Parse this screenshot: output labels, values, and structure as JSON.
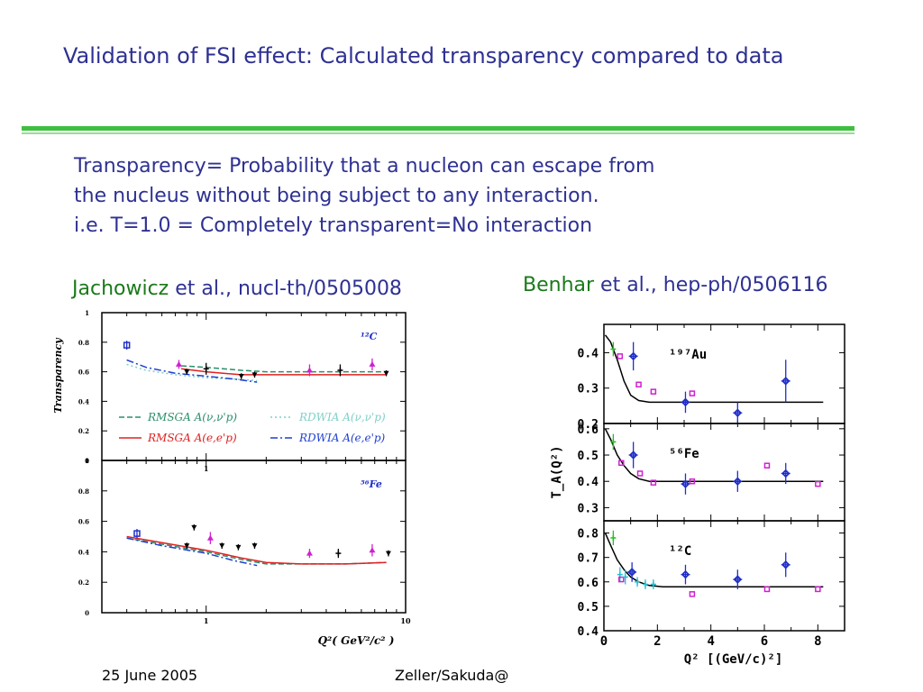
{
  "slide": {
    "title": "Validation of FSI effect: Calculated transparency compared to data",
    "definition": [
      "Transparency= Probability that a nucleon can escape from",
      "the nucleus without being subject to any interaction.",
      "i.e. T=1.0 = Completely transparent=No interaction"
    ],
    "ref_left": {
      "author": "Jachowicz",
      "rest": " et al., nucl-th/0505008"
    },
    "ref_right": {
      "author": "Benhar",
      "rest": " et al., hep-ph/0506116"
    },
    "footer_date": "25 June 2005",
    "footer_author": "Zeller/Sakuda@"
  },
  "colors": {
    "title": "#2e3192",
    "author": "#1a7a1a",
    "rule": "#3fbf3f",
    "rmsga_nu": "#2a8f6a",
    "rmsga_e": "#e02020",
    "rdwia_nu": "#7fd0c8",
    "rdwia_e": "#1f3fd0",
    "blue_pts": "#1f2fc8",
    "magenta_pts": "#d020d0",
    "green_pts": "#20c020",
    "cyan_pts": "#20c0d0"
  },
  "chart_data": [
    {
      "type": "line",
      "title": "",
      "panel_label": "¹²C",
      "xlabel": "",
      "ylabel": "Transparency",
      "xscale": "log",
      "xlim": [
        0.3,
        10
      ],
      "ylim": [
        0,
        1
      ],
      "xticks": [
        {
          "value": 1,
          "label": "1"
        }
      ],
      "yticks": [
        {
          "value": 0,
          "label": "0"
        },
        {
          "value": 0.2,
          "label": "0.2"
        },
        {
          "value": 0.4,
          "label": "0.4"
        },
        {
          "value": 0.6,
          "label": "0.6"
        },
        {
          "value": 0.8,
          "label": "0.8"
        },
        {
          "value": 1,
          "label": "1"
        }
      ],
      "legend": [
        {
          "label": "RMSGA A(ν,ν'p)",
          "series": 0
        },
        {
          "label": "RDWIA A(ν,ν'p)",
          "series": 2
        },
        {
          "label": "RMSGA A(e,e'p)",
          "series": 1
        },
        {
          "label": "RDWIA A(e,e'p)",
          "series": 3
        }
      ],
      "series": [
        {
          "name": "RMSGA A(ν,ν'p)",
          "style": "dashed",
          "color": "#2a8f6a",
          "x": [
            0.75,
            1.0,
            1.5,
            2.0,
            3.0,
            5.0,
            8.0
          ],
          "y": [
            0.64,
            0.63,
            0.61,
            0.6,
            0.6,
            0.6,
            0.6
          ]
        },
        {
          "name": "RMSGA A(e,e'p)",
          "style": "solid",
          "color": "#e02020",
          "x": [
            0.75,
            1.0,
            1.5,
            2.0,
            3.0,
            5.0,
            8.0
          ],
          "y": [
            0.62,
            0.6,
            0.58,
            0.58,
            0.58,
            0.58,
            0.58
          ]
        },
        {
          "name": "RDWIA A(ν,ν'p)",
          "style": "dotted",
          "color": "#7fd0c8",
          "x": [
            0.4,
            0.5,
            0.7,
            1.0,
            1.4,
            1.8
          ],
          "y": [
            0.65,
            0.61,
            0.58,
            0.56,
            0.55,
            0.54
          ]
        },
        {
          "name": "RDWIA A(e,e'p)",
          "style": "dashdot",
          "color": "#1f3fd0",
          "x": [
            0.4,
            0.5,
            0.7,
            1.0,
            1.4,
            1.8
          ],
          "y": [
            0.68,
            0.63,
            0.59,
            0.57,
            0.55,
            0.53
          ]
        }
      ],
      "points": [
        {
          "x": 0.4,
          "y": 0.78,
          "err": 0.03,
          "marker": "square",
          "color": "#1f2fc8"
        },
        {
          "x": 0.73,
          "y": 0.65,
          "err": 0.03,
          "marker": "triangle-up",
          "color": "#d020d0"
        },
        {
          "x": 0.8,
          "y": 0.6,
          "err": 0.02,
          "marker": "triangle-down",
          "color": "#000000"
        },
        {
          "x": 1.0,
          "y": 0.62,
          "err": 0.04,
          "marker": "cross",
          "color": "#000000"
        },
        {
          "x": 1.5,
          "y": 0.57,
          "err": 0.02,
          "marker": "triangle-down",
          "color": "#000000"
        },
        {
          "x": 1.75,
          "y": 0.58,
          "err": 0.02,
          "marker": "triangle-down",
          "color": "#000000"
        },
        {
          "x": 3.3,
          "y": 0.61,
          "err": 0.04,
          "marker": "triangle-up",
          "color": "#d020d0"
        },
        {
          "x": 4.7,
          "y": 0.61,
          "err": 0.04,
          "marker": "cross",
          "color": "#000000"
        },
        {
          "x": 6.8,
          "y": 0.65,
          "err": 0.04,
          "marker": "triangle-up",
          "color": "#d020d0"
        },
        {
          "x": 8.0,
          "y": 0.59,
          "err": 0.02,
          "marker": "triangle-down",
          "color": "#000000"
        }
      ]
    },
    {
      "type": "line",
      "title": "",
      "panel_label": "⁵⁶Fe",
      "xlabel": "Q²( GeV²/c² )",
      "ylabel": "",
      "xscale": "log",
      "xlim": [
        0.3,
        10
      ],
      "ylim": [
        0,
        1
      ],
      "xticks": [
        {
          "value": 1,
          "label": "1"
        },
        {
          "value": 10,
          "label": "10"
        }
      ],
      "yticks": [
        {
          "value": 0,
          "label": "0"
        },
        {
          "value": 0.2,
          "label": "0.2"
        },
        {
          "value": 0.4,
          "label": "0.4"
        },
        {
          "value": 0.6,
          "label": "0.6"
        },
        {
          "value": 0.8,
          "label": "0.8"
        },
        {
          "value": 1,
          "label": "1"
        }
      ],
      "series": [
        {
          "name": "RMSGA A(ν,ν'p)",
          "style": "dashed",
          "color": "#2a8f6a",
          "x": [
            0.4,
            0.6,
            1.0,
            1.5,
            2.0,
            3.0,
            5.0,
            8.0
          ],
          "y": [
            0.49,
            0.45,
            0.4,
            0.35,
            0.32,
            0.32,
            0.32,
            0.33
          ]
        },
        {
          "name": "RMSGA A(e,e'p)",
          "style": "solid",
          "color": "#e02020",
          "x": [
            0.4,
            0.6,
            1.0,
            1.5,
            2.0,
            3.0,
            5.0,
            8.0
          ],
          "y": [
            0.5,
            0.46,
            0.41,
            0.36,
            0.33,
            0.32,
            0.32,
            0.33
          ]
        },
        {
          "name": "RDWIA A(e,e'p)",
          "style": "dashdot",
          "color": "#1f3fd0",
          "x": [
            0.4,
            0.6,
            1.0,
            1.4,
            1.8
          ],
          "y": [
            0.49,
            0.44,
            0.39,
            0.34,
            0.31
          ]
        }
      ],
      "points": [
        {
          "x": 0.45,
          "y": 0.52,
          "err": 0.03,
          "marker": "square",
          "color": "#1f2fc8"
        },
        {
          "x": 0.8,
          "y": 0.44,
          "err": 0.02,
          "marker": "triangle-down",
          "color": "#000000"
        },
        {
          "x": 0.87,
          "y": 0.56,
          "err": 0.02,
          "marker": "triangle-down",
          "color": "#000000"
        },
        {
          "x": 1.05,
          "y": 0.49,
          "err": 0.04,
          "marker": "triangle-up",
          "color": "#d020d0"
        },
        {
          "x": 1.2,
          "y": 0.44,
          "err": 0.02,
          "marker": "triangle-down",
          "color": "#000000"
        },
        {
          "x": 1.45,
          "y": 0.43,
          "err": 0.02,
          "marker": "triangle-down",
          "color": "#000000"
        },
        {
          "x": 1.75,
          "y": 0.44,
          "err": 0.02,
          "marker": "triangle-down",
          "color": "#000000"
        },
        {
          "x": 3.3,
          "y": 0.39,
          "err": 0.03,
          "marker": "triangle-up",
          "color": "#d020d0"
        },
        {
          "x": 4.6,
          "y": 0.39,
          "err": 0.03,
          "marker": "cross",
          "color": "#000000"
        },
        {
          "x": 6.8,
          "y": 0.41,
          "err": 0.04,
          "marker": "triangle-up",
          "color": "#d020d0"
        },
        {
          "x": 8.2,
          "y": 0.39,
          "err": 0.02,
          "marker": "triangle-down",
          "color": "#000000"
        }
      ]
    },
    {
      "type": "line",
      "title": "",
      "panel_label": "¹⁹⁷Au",
      "xlabel": "",
      "ylabel": "",
      "xlim": [
        0,
        9
      ],
      "ylim": [
        0.2,
        0.48
      ],
      "xticks": [],
      "yticks": [
        {
          "value": 0.2,
          "label": "0.2"
        },
        {
          "value": 0.3,
          "label": "0.3"
        },
        {
          "value": 0.4,
          "label": "0.4"
        }
      ],
      "series": [
        {
          "name": "",
          "style": "solid",
          "color": "#000000",
          "x": [
            0.05,
            0.25,
            0.5,
            0.75,
            1.0,
            1.3,
            1.7,
            2.2,
            3,
            5,
            8.2
          ],
          "y": [
            0.45,
            0.43,
            0.38,
            0.32,
            0.28,
            0.265,
            0.26,
            0.26,
            0.26,
            0.26,
            0.26
          ]
        }
      ],
      "points": [
        {
          "x": 0.35,
          "y": 0.41,
          "err": 0.02,
          "marker": "cross",
          "color": "#20c020"
        },
        {
          "x": 0.6,
          "y": 0.39,
          "err": 0.0,
          "marker": "open-square",
          "color": "#d020d0"
        },
        {
          "x": 1.1,
          "y": 0.39,
          "err": 0.04,
          "marker": "open-diamond",
          "color": "#1f2fc8"
        },
        {
          "x": 1.3,
          "y": 0.31,
          "err": 0.0,
          "marker": "open-square",
          "color": "#d020d0"
        },
        {
          "x": 1.85,
          "y": 0.29,
          "err": 0.0,
          "marker": "open-square",
          "color": "#d020d0"
        },
        {
          "x": 3.05,
          "y": 0.26,
          "err": 0.03,
          "marker": "open-diamond",
          "color": "#1f2fc8"
        },
        {
          "x": 3.3,
          "y": 0.285,
          "err": 0.0,
          "marker": "open-square",
          "color": "#d020d0"
        },
        {
          "x": 5.0,
          "y": 0.23,
          "err": 0.03,
          "marker": "open-diamond",
          "color": "#1f2fc8"
        },
        {
          "x": 6.8,
          "y": 0.32,
          "err": 0.06,
          "marker": "open-diamond",
          "color": "#1f2fc8"
        }
      ]
    },
    {
      "type": "line",
      "title": "",
      "panel_label": "⁵⁶Fe",
      "xlabel": "",
      "ylabel": "T_A(Q²)",
      "xlim": [
        0,
        9
      ],
      "ylim": [
        0.25,
        0.62
      ],
      "xticks": [],
      "yticks": [
        {
          "value": 0.3,
          "label": "0.3"
        },
        {
          "value": 0.4,
          "label": "0.4"
        },
        {
          "value": 0.5,
          "label": "0.5"
        },
        {
          "value": 0.6,
          "label": "0.6"
        }
      ],
      "series": [
        {
          "name": "",
          "style": "solid",
          "color": "#000000",
          "x": [
            0.05,
            0.25,
            0.5,
            0.75,
            1.0,
            1.3,
            1.7,
            2.2,
            3,
            5,
            8.2
          ],
          "y": [
            0.6,
            0.56,
            0.5,
            0.46,
            0.43,
            0.41,
            0.4,
            0.4,
            0.4,
            0.4,
            0.4
          ]
        }
      ],
      "points": [
        {
          "x": 0.35,
          "y": 0.55,
          "err": 0.03,
          "marker": "cross",
          "color": "#20c020"
        },
        {
          "x": 0.65,
          "y": 0.47,
          "err": 0.0,
          "marker": "open-square",
          "color": "#d020d0"
        },
        {
          "x": 1.1,
          "y": 0.5,
          "err": 0.05,
          "marker": "open-diamond",
          "color": "#1f2fc8"
        },
        {
          "x": 1.35,
          "y": 0.43,
          "err": 0.0,
          "marker": "open-square",
          "color": "#d020d0"
        },
        {
          "x": 1.85,
          "y": 0.395,
          "err": 0.0,
          "marker": "open-square",
          "color": "#d020d0"
        },
        {
          "x": 3.05,
          "y": 0.39,
          "err": 0.04,
          "marker": "open-diamond",
          "color": "#1f2fc8"
        },
        {
          "x": 3.3,
          "y": 0.4,
          "err": 0.0,
          "marker": "open-square",
          "color": "#d020d0"
        },
        {
          "x": 5.0,
          "y": 0.4,
          "err": 0.04,
          "marker": "open-diamond",
          "color": "#1f2fc8"
        },
        {
          "x": 6.1,
          "y": 0.46,
          "err": 0.0,
          "marker": "open-square",
          "color": "#d020d0"
        },
        {
          "x": 6.8,
          "y": 0.43,
          "err": 0.04,
          "marker": "open-diamond",
          "color": "#1f2fc8"
        },
        {
          "x": 8.0,
          "y": 0.39,
          "err": 0.0,
          "marker": "open-square",
          "color": "#d020d0"
        }
      ]
    },
    {
      "type": "line",
      "title": "",
      "panel_label": "¹²C",
      "xlabel": "Q² [(GeV/c)²]",
      "ylabel": "",
      "xlim": [
        0,
        9
      ],
      "ylim": [
        0.4,
        0.85
      ],
      "xticks": [
        {
          "value": 0,
          "label": "0"
        },
        {
          "value": 2,
          "label": "2"
        },
        {
          "value": 4,
          "label": "4"
        },
        {
          "value": 6,
          "label": "6"
        },
        {
          "value": 8,
          "label": "8"
        }
      ],
      "yticks": [
        {
          "value": 0.4,
          "label": "0.4"
        },
        {
          "value": 0.5,
          "label": "0.5"
        },
        {
          "value": 0.6,
          "label": "0.6"
        },
        {
          "value": 0.7,
          "label": "0.7"
        },
        {
          "value": 0.8,
          "label": "0.8"
        }
      ],
      "series": [
        {
          "name": "",
          "style": "solid",
          "color": "#000000",
          "x": [
            0.05,
            0.25,
            0.5,
            0.75,
            1.0,
            1.3,
            1.7,
            2.2,
            3,
            5,
            8.2
          ],
          "y": [
            0.8,
            0.75,
            0.69,
            0.65,
            0.62,
            0.6,
            0.585,
            0.58,
            0.58,
            0.58,
            0.58
          ]
        }
      ],
      "points": [
        {
          "x": 0.35,
          "y": 0.78,
          "err": 0.03,
          "marker": "cross",
          "color": "#20c020"
        },
        {
          "x": 0.6,
          "y": 0.63,
          "err": 0.03,
          "marker": "cross",
          "color": "#20c0d0"
        },
        {
          "x": 0.65,
          "y": 0.61,
          "err": 0.0,
          "marker": "open-square",
          "color": "#d020d0"
        },
        {
          "x": 0.8,
          "y": 0.62,
          "err": 0.03,
          "marker": "cross",
          "color": "#20c0d0"
        },
        {
          "x": 1.05,
          "y": 0.64,
          "err": 0.04,
          "marker": "open-diamond",
          "color": "#1f2fc8"
        },
        {
          "x": 1.25,
          "y": 0.6,
          "err": 0.02,
          "marker": "cross",
          "color": "#20c0d0"
        },
        {
          "x": 1.55,
          "y": 0.59,
          "err": 0.02,
          "marker": "cross",
          "color": "#20c0d0"
        },
        {
          "x": 1.85,
          "y": 0.59,
          "err": 0.02,
          "marker": "cross",
          "color": "#20c0d0"
        },
        {
          "x": 3.05,
          "y": 0.63,
          "err": 0.04,
          "marker": "open-diamond",
          "color": "#1f2fc8"
        },
        {
          "x": 3.3,
          "y": 0.55,
          "err": 0.0,
          "marker": "open-square",
          "color": "#d020d0"
        },
        {
          "x": 5.0,
          "y": 0.61,
          "err": 0.04,
          "marker": "open-diamond",
          "color": "#1f2fc8"
        },
        {
          "x": 6.1,
          "y": 0.57,
          "err": 0.0,
          "marker": "open-square",
          "color": "#d020d0"
        },
        {
          "x": 6.8,
          "y": 0.67,
          "err": 0.05,
          "marker": "open-diamond",
          "color": "#1f2fc8"
        },
        {
          "x": 8.0,
          "y": 0.57,
          "err": 0.0,
          "marker": "open-square",
          "color": "#d020d0"
        }
      ]
    }
  ]
}
